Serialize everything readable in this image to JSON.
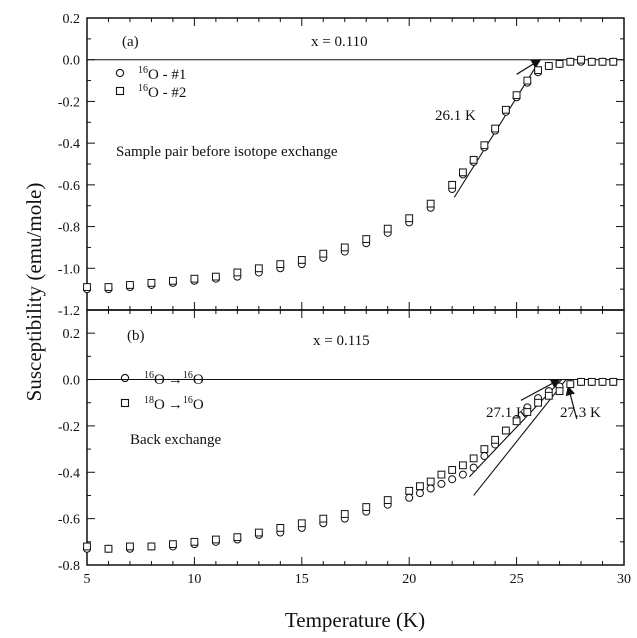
{
  "chart_data": [
    {
      "type": "scatter",
      "panel": "(a)",
      "annotation": "x = 0.110",
      "note": "Sample pair before isotope exchange",
      "arrow_label": "26.1 K",
      "legend_location": "top-left",
      "xlim": [
        5,
        30
      ],
      "ylim": [
        -1.2,
        0.2
      ],
      "xticks": [
        5,
        10,
        15,
        20,
        25,
        30
      ],
      "yticks": [
        0.2,
        0.0,
        -0.2,
        -0.4,
        -0.6,
        -0.8,
        -1.0,
        -1.2
      ],
      "ytick_labels": [
        "0.2",
        "0.0",
        "-0.2",
        "-0.4",
        "-0.6",
        "-0.8",
        "-1.0",
        "-1.2"
      ],
      "fit_line": {
        "x": [
          22.1,
          26.1
        ],
        "y": [
          -0.66,
          0.0
        ]
      },
      "arrow": {
        "from": [
          25.0,
          -0.07
        ],
        "to": [
          26.1,
          0.0
        ]
      },
      "series": [
        {
          "iso": "16",
          "suffix": " - #1",
          "marker": "circle",
          "x": [
            5,
            6,
            7,
            8,
            9,
            10,
            11,
            12,
            13,
            14,
            15,
            16,
            17,
            18,
            19,
            20,
            21,
            22,
            22.5,
            23,
            23.5,
            24,
            24.5,
            25,
            25.5,
            26,
            26.5,
            27,
            27.5,
            28,
            28.5,
            29,
            29.5
          ],
          "y": [
            -1.1,
            -1.1,
            -1.09,
            -1.08,
            -1.07,
            -1.06,
            -1.05,
            -1.04,
            -1.02,
            -1.0,
            -0.98,
            -0.95,
            -0.92,
            -0.88,
            -0.83,
            -0.78,
            -0.71,
            -0.62,
            -0.55,
            -0.49,
            -0.42,
            -0.34,
            -0.25,
            -0.18,
            -0.11,
            -0.06,
            -0.03,
            -0.02,
            -0.01,
            -0.01,
            -0.01,
            -0.01,
            -0.01
          ]
        },
        {
          "iso": "16",
          "suffix": " - #2",
          "marker": "square",
          "x": [
            5,
            6,
            7,
            8,
            9,
            10,
            11,
            12,
            13,
            14,
            15,
            16,
            17,
            18,
            19,
            20,
            21,
            22,
            22.5,
            23,
            23.5,
            24,
            24.5,
            25,
            25.5,
            26,
            26.5,
            27,
            27.5,
            28,
            28.5,
            29,
            29.5
          ],
          "y": [
            -1.09,
            -1.09,
            -1.08,
            -1.07,
            -1.06,
            -1.05,
            -1.04,
            -1.02,
            -1.0,
            -0.98,
            -0.96,
            -0.93,
            -0.9,
            -0.86,
            -0.81,
            -0.76,
            -0.69,
            -0.6,
            -0.54,
            -0.48,
            -0.41,
            -0.33,
            -0.24,
            -0.17,
            -0.1,
            -0.05,
            -0.03,
            -0.02,
            -0.01,
            0.0,
            -0.01,
            -0.01,
            -0.01
          ]
        }
      ]
    },
    {
      "type": "scatter",
      "panel": "(b)",
      "annotation": "x = 0.115",
      "note": "Back exchange",
      "arrow_labels": [
        "27.1 K",
        "27.3 K"
      ],
      "legend_location": "top-left",
      "xlim": [
        5,
        30
      ],
      "ylim": [
        -0.8,
        0.3
      ],
      "xticks": [
        5,
        10,
        15,
        20,
        25,
        30
      ],
      "xlabels": [
        "5",
        "10",
        "15",
        "20",
        "25",
        "30"
      ],
      "yticks": [
        0.2,
        0.0,
        -0.2,
        -0.4,
        -0.6,
        -0.8
      ],
      "ytick_labels": [
        "0.2",
        "0.0",
        "-0.2",
        "-0.4",
        "-0.6",
        "-0.8"
      ],
      "fit_lines": [
        {
          "x": [
            22.8,
            27.1
          ],
          "y": [
            -0.42,
            0.0
          ]
        },
        {
          "x": [
            23.0,
            27.3
          ],
          "y": [
            -0.5,
            0.0
          ]
        }
      ],
      "arrows": [
        {
          "from": [
            25.2,
            -0.09
          ],
          "to": [
            27.0,
            0.0
          ]
        },
        {
          "from": [
            27.8,
            -0.17
          ],
          "to": [
            27.4,
            -0.03
          ]
        }
      ],
      "series": [
        {
          "from_iso": "16",
          "to_iso": "16",
          "marker": "circle",
          "x": [
            5,
            6,
            7,
            8,
            9,
            10,
            11,
            12,
            13,
            14,
            15,
            16,
            17,
            18,
            19,
            20,
            20.5,
            21,
            21.5,
            22,
            22.5,
            23,
            23.5,
            24,
            24.5,
            25,
            25.5,
            26,
            26.5,
            27,
            27.5,
            28,
            28.5,
            29,
            29.5
          ],
          "y": [
            -0.73,
            -0.73,
            -0.73,
            -0.72,
            -0.72,
            -0.71,
            -0.7,
            -0.69,
            -0.67,
            -0.66,
            -0.64,
            -0.62,
            -0.6,
            -0.57,
            -0.54,
            -0.51,
            -0.49,
            -0.47,
            -0.45,
            -0.43,
            -0.41,
            -0.38,
            -0.33,
            -0.28,
            -0.22,
            -0.17,
            -0.12,
            -0.08,
            -0.05,
            -0.03,
            -0.02,
            -0.01,
            -0.01,
            -0.01,
            -0.01
          ]
        },
        {
          "from_iso": "18",
          "to_iso": "16",
          "marker": "square",
          "x": [
            5,
            6,
            7,
            8,
            9,
            10,
            11,
            12,
            13,
            14,
            15,
            16,
            17,
            18,
            19,
            20,
            20.5,
            21,
            21.5,
            22,
            22.5,
            23,
            23.5,
            24,
            24.5,
            25,
            25.5,
            26,
            26.5,
            27,
            27.5,
            28,
            28.5,
            29,
            29.5
          ],
          "y": [
            -0.72,
            -0.73,
            -0.72,
            -0.72,
            -0.71,
            -0.7,
            -0.69,
            -0.68,
            -0.66,
            -0.64,
            -0.62,
            -0.6,
            -0.58,
            -0.55,
            -0.52,
            -0.48,
            -0.46,
            -0.44,
            -0.41,
            -0.39,
            -0.37,
            -0.34,
            -0.3,
            -0.26,
            -0.22,
            -0.18,
            -0.14,
            -0.1,
            -0.07,
            -0.05,
            -0.02,
            -0.01,
            -0.01,
            -0.01,
            -0.01
          ]
        }
      ]
    }
  ],
  "shared": {
    "ylabel": "Susceptibility (emu/mole)",
    "xlabel": "Temperature (K)",
    "iso_letter": "O",
    "arrow_glyph": "→"
  }
}
